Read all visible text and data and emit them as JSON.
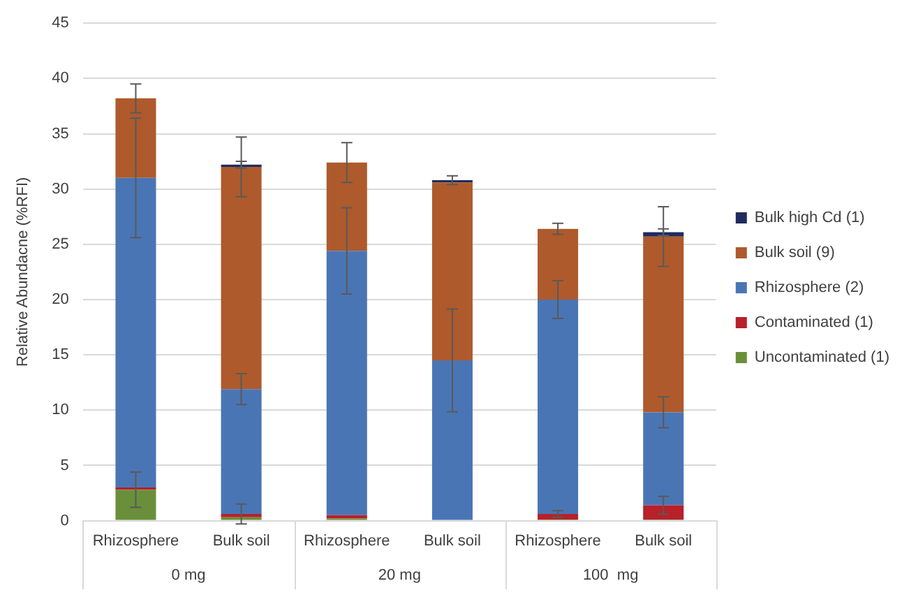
{
  "chart_data": {
    "type": "bar",
    "stacked": true,
    "ylabel": "Relative Abundacne (%RFI)",
    "categories": [
      "Rhizosphere",
      "Bulk soil",
      "Rhizosphere",
      "Bulk soil",
      "Rhizosphere",
      "Bulk soil"
    ],
    "annotations": [
      "0 mg",
      "20 mg",
      "100  mg"
    ],
    "ylim": [
      0,
      45
    ],
    "yticks": [
      0,
      5,
      10,
      15,
      20,
      25,
      30,
      35,
      40,
      45
    ],
    "grid": "y",
    "legend": "right",
    "series": [
      {
        "name": "Uncontaminated (1)",
        "color": "#6a8f3a",
        "values": [
          2.8,
          0.3,
          0.2,
          0,
          0.1,
          0.1
        ],
        "errors": [
          1.6,
          null,
          null,
          null,
          null,
          null
        ]
      },
      {
        "name": "Contaminated (1)",
        "color": "#b8202a",
        "values": [
          0.2,
          0.3,
          0.3,
          0,
          0.5,
          1.3
        ],
        "errors": [
          null,
          0.9,
          null,
          null,
          0.3,
          0.8
        ]
      },
      {
        "name": "Rhizosphere (2)",
        "color": "#4a75b5",
        "values": [
          28,
          11.3,
          23.9,
          14.5,
          19.4,
          8.4
        ],
        "errors": [
          5.4,
          1.4,
          3.9,
          4.65,
          1.7,
          1.4
        ]
      },
      {
        "name": "Bulk soil (9)",
        "color": "#ae5a2c",
        "values": [
          7.2,
          20.1,
          8.0,
          16.1,
          6.4,
          15.9
        ],
        "errors": [
          1.3,
          2.7,
          1.8,
          null,
          0.5,
          2.7
        ]
      },
      {
        "name": "Bulk high Cd (1)",
        "color": "#1f2a5e",
        "values": [
          0,
          0.2,
          0,
          0.2,
          0,
          0.4
        ],
        "errors": [
          null,
          0.3,
          null,
          0.4,
          null,
          0.3
        ]
      }
    ]
  }
}
